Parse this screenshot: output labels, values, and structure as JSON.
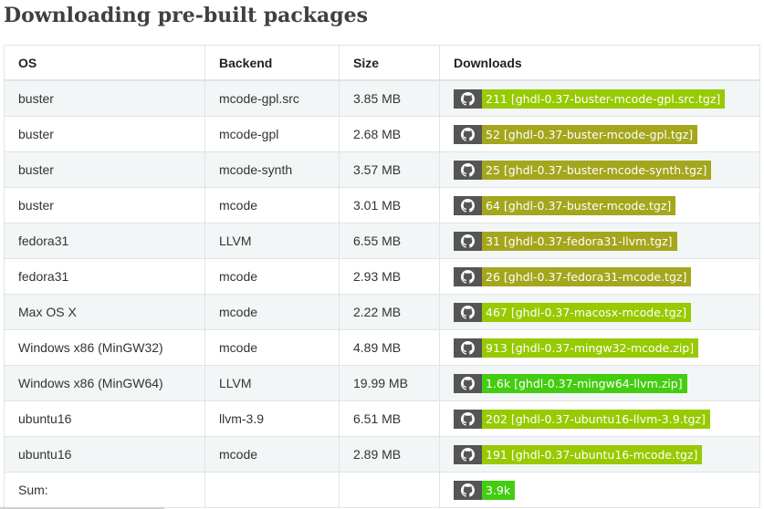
{
  "page": {
    "title": "Downloading pre-built packages"
  },
  "table": {
    "headers": {
      "os": "OS",
      "backend": "Backend",
      "size": "Size",
      "downloads": "Downloads"
    },
    "rows": [
      {
        "os": "buster",
        "backend": "mcode-gpl.src",
        "size": "3.85 MB",
        "badge": "211 [ghdl-0.37-buster-mcode-gpl.src.tgz]",
        "color": "#97ca00"
      },
      {
        "os": "buster",
        "backend": "mcode-gpl",
        "size": "2.68 MB",
        "badge": "52 [ghdl-0.37-buster-mcode-gpl.tgz]",
        "color": "#a4a61d"
      },
      {
        "os": "buster",
        "backend": "mcode-synth",
        "size": "3.57 MB",
        "badge": "25 [ghdl-0.37-buster-mcode-synth.tgz]",
        "color": "#a4a61d"
      },
      {
        "os": "buster",
        "backend": "mcode",
        "size": "3.01 MB",
        "badge": "64 [ghdl-0.37-buster-mcode.tgz]",
        "color": "#a4a61d"
      },
      {
        "os": "fedora31",
        "backend": "LLVM",
        "size": "6.55 MB",
        "badge": "31 [ghdl-0.37-fedora31-llvm.tgz]",
        "color": "#a4a61d"
      },
      {
        "os": "fedora31",
        "backend": "mcode",
        "size": "2.93 MB",
        "badge": "26 [ghdl-0.37-fedora31-mcode.tgz]",
        "color": "#a4a61d"
      },
      {
        "os": "Max OS X",
        "backend": "mcode",
        "size": "2.22 MB",
        "badge": "467 [ghdl-0.37-macosx-mcode.tgz]",
        "color": "#97ca00"
      },
      {
        "os": "Windows x86 (MinGW32)",
        "backend": "mcode",
        "size": "4.89 MB",
        "badge": "913 [ghdl-0.37-mingw32-mcode.zip]",
        "color": "#97ca00"
      },
      {
        "os": "Windows x86 (MinGW64)",
        "backend": "LLVM",
        "size": "19.99 MB",
        "badge": "1.6k [ghdl-0.37-mingw64-llvm.zip]",
        "color": "#4c1"
      },
      {
        "os": "ubuntu16",
        "backend": "llvm-3.9",
        "size": "6.51 MB",
        "badge": "202 [ghdl-0.37-ubuntu16-llvm-3.9.tgz]",
        "color": "#97ca00"
      },
      {
        "os": "ubuntu16",
        "backend": "mcode",
        "size": "2.89 MB",
        "badge": "191 [ghdl-0.37-ubuntu16-mcode.tgz]",
        "color": "#97ca00"
      }
    ],
    "sum": {
      "label": "Sum:",
      "badge": "3.9k",
      "color": "#4c1"
    }
  },
  "icons": {
    "badge": "github-icon"
  }
}
